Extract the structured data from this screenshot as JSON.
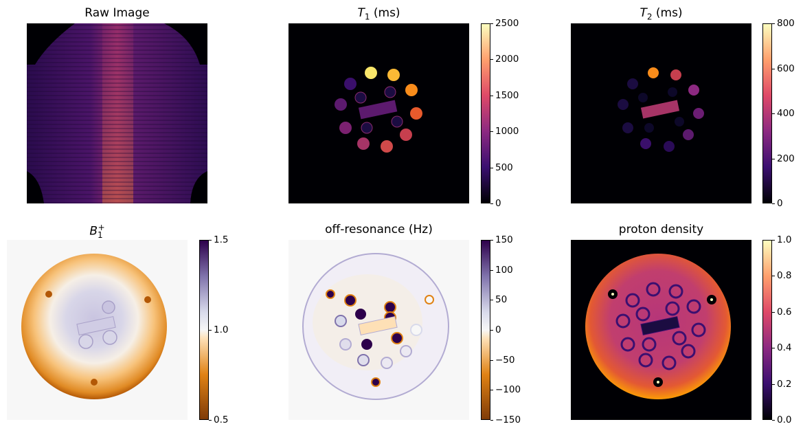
{
  "panels": {
    "raw": {
      "title": "Raw Image"
    },
    "t1": {
      "title_symbol": "T",
      "title_sub": "1",
      "title_unit": " (ms)",
      "ticks": [
        "2500",
        "2000",
        "1500",
        "1000",
        "500",
        "0"
      ]
    },
    "t2": {
      "title_symbol": "T",
      "title_sub": "2",
      "title_unit": " (ms)",
      "ticks": [
        "800",
        "600",
        "400",
        "200",
        "0"
      ]
    },
    "b1": {
      "title_symbol": "B",
      "title_sub": "1",
      "title_sup": "+",
      "ticks": [
        "1.5",
        "1.0",
        "0.5"
      ]
    },
    "offres": {
      "title": "off-resonance (Hz)",
      "ticks": [
        "150",
        "100",
        "50",
        "0",
        "−50",
        "−100",
        "−150"
      ]
    },
    "pd": {
      "title": "proton density",
      "ticks": [
        "1.0",
        "0.8",
        "0.6",
        "0.4",
        "0.2",
        "0.0"
      ]
    }
  },
  "colors": {
    "background": "#ffffff",
    "inferno_dark": "#000004",
    "puor_neutral": "#f7f7f7"
  }
}
